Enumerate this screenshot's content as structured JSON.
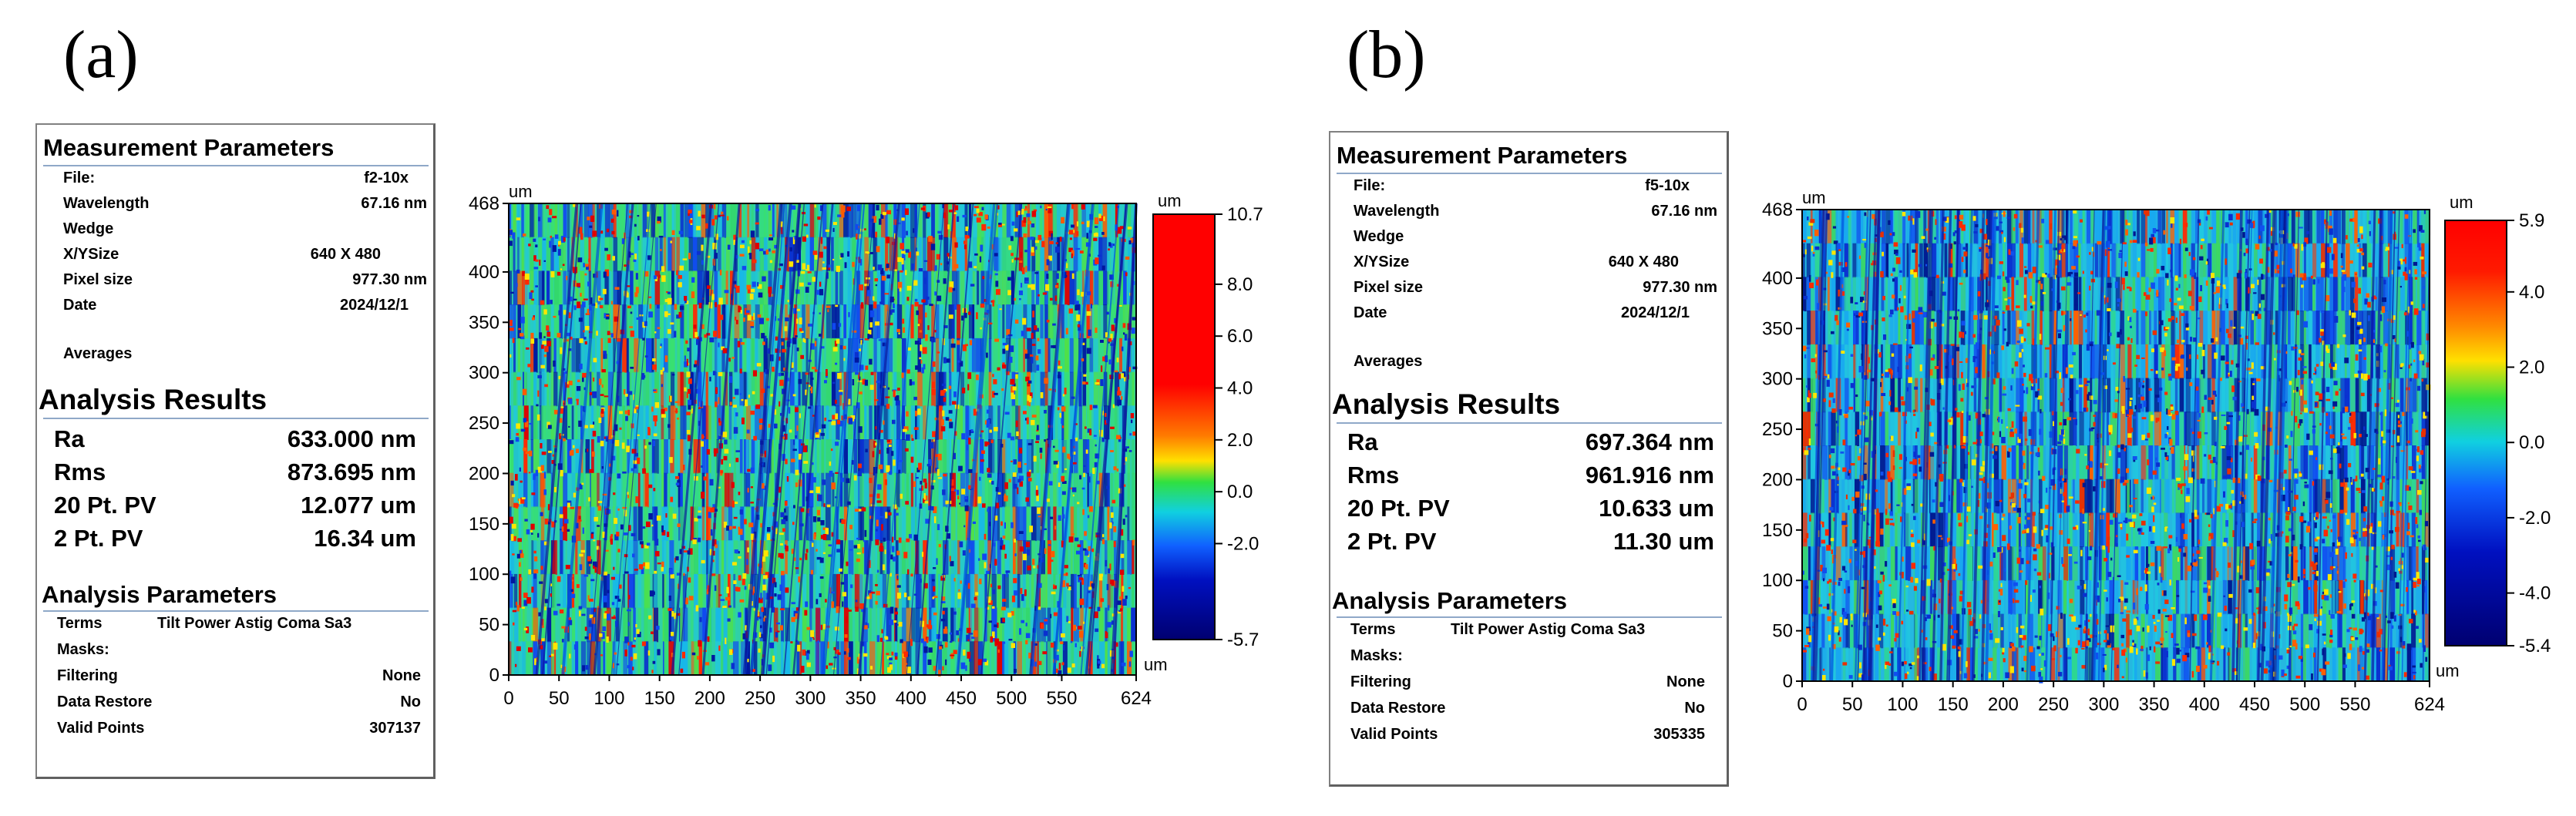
{
  "panels": [
    {
      "label": "(a)",
      "measurement_title": "Measurement Parameters",
      "measurement": [
        {
          "label": "File:",
          "value": "f2-10x"
        },
        {
          "label": "Wavelength",
          "value": "67.16  nm"
        },
        {
          "label": "Wedge",
          "value": ""
        },
        {
          "label": "X/YSize",
          "value": "640 X 480"
        },
        {
          "label": "Pixel size",
          "value": "977.30  nm"
        },
        {
          "label": "Date",
          "value": "2024/12/1"
        }
      ],
      "averages_label": "Averages",
      "results_title": "Analysis Results",
      "results": [
        {
          "label": "Ra",
          "value": "633.000 nm"
        },
        {
          "label": "Rms",
          "value": "873.695 nm"
        },
        {
          "label": "20 Pt. PV",
          "value": "12.077 um"
        },
        {
          "label": "2 Pt. PV",
          "value": "16.34 um"
        }
      ],
      "analysis_title": "Analysis Parameters",
      "analysis": [
        {
          "label": "Terms",
          "value": "Tilt Power Astig Coma Sa3"
        },
        {
          "label": "Masks:",
          "value": ""
        },
        {
          "label": "Filtering",
          "value": "None"
        },
        {
          "label": "Data Restore",
          "value": "No"
        },
        {
          "label": "Valid Points",
          "value": "307137"
        }
      ],
      "map": {
        "y_unit": "um",
        "x_unit": "um",
        "y_ticks": [
          "468",
          "400",
          "350",
          "300",
          "250",
          "200",
          "150",
          "100",
          "50",
          "0"
        ],
        "x_ticks": [
          "0",
          "50",
          "100",
          "150",
          "200",
          "250",
          "300",
          "350",
          "400",
          "450",
          "500",
          "550",
          "624"
        ],
        "colorbar_unit": "um",
        "colorbar_ticks": [
          "10.7",
          "8.0",
          "6.0",
          "4.0",
          "2.0",
          "0.0",
          "-2.0",
          "-5.7"
        ],
        "colorbar_max": 10.7,
        "colorbar_min": -5.7,
        "seed": 11
      }
    },
    {
      "label": "(b)",
      "measurement_title": "Measurement Parameters",
      "measurement": [
        {
          "label": "File:",
          "value": "f5-10x"
        },
        {
          "label": "Wavelength",
          "value": "67.16  nm"
        },
        {
          "label": "Wedge",
          "value": ""
        },
        {
          "label": "X/YSize",
          "value": "640 X 480"
        },
        {
          "label": "Pixel size",
          "value": "977.30  nm"
        },
        {
          "label": "Date",
          "value": "2024/12/1"
        }
      ],
      "averages_label": "Averages",
      "results_title": "Analysis Results",
      "results": [
        {
          "label": "Ra",
          "value": "697.364 nm"
        },
        {
          "label": "Rms",
          "value": "961.916 nm"
        },
        {
          "label": "20 Pt. PV",
          "value": "10.633 um"
        },
        {
          "label": "2 Pt. PV",
          "value": "11.30 um"
        }
      ],
      "analysis_title": "Analysis Parameters",
      "analysis": [
        {
          "label": "Terms",
          "value": "Tilt Power Astig Coma Sa3"
        },
        {
          "label": "Masks:",
          "value": ""
        },
        {
          "label": "Filtering",
          "value": "None"
        },
        {
          "label": "Data Restore",
          "value": "No"
        },
        {
          "label": "Valid Points",
          "value": "305335"
        }
      ],
      "map": {
        "y_unit": "um",
        "x_unit": "um",
        "y_ticks": [
          "468",
          "400",
          "350",
          "300",
          "250",
          "200",
          "150",
          "100",
          "50",
          "0"
        ],
        "x_ticks": [
          "0",
          "50",
          "100",
          "150",
          "200",
          "250",
          "300",
          "350",
          "400",
          "450",
          "500",
          "550",
          "624"
        ],
        "colorbar_unit": "um",
        "colorbar_ticks": [
          "5.9",
          "4.0",
          "2.0",
          "0.0",
          "-2.0",
          "-4.0",
          "-5.4"
        ],
        "colorbar_max": 5.9,
        "colorbar_min": -5.4,
        "seed": 29
      }
    }
  ]
}
